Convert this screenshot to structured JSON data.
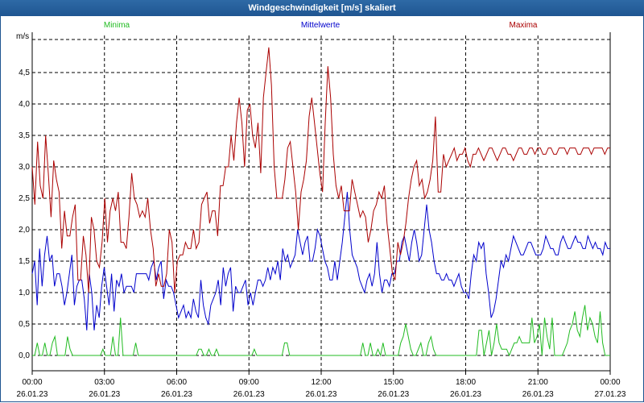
{
  "window": {
    "title": "Windgeschwindigkeit [m/s] skaliert"
  },
  "colors": {
    "minima": "#22bb22",
    "mittel": "#0000cc",
    "maxima": "#aa0000",
    "titlebar": "#1f5591"
  },
  "chart_data": {
    "type": "line",
    "ylabel": "m/s",
    "ylim": [
      -0.2,
      5.0
    ],
    "xlim_hours": [
      0,
      24
    ],
    "grid": true,
    "legend_placement": "top",
    "yticks": [
      "0,0",
      "0,5",
      "1,0",
      "1,5",
      "2,0",
      "2,5",
      "3,0",
      "3,5",
      "4,0",
      "4,5"
    ],
    "ytick_values": [
      0,
      0.5,
      1.0,
      1.5,
      2.0,
      2.5,
      3.0,
      3.5,
      4.0,
      4.5
    ],
    "xticks": [
      {
        "time": "00:00",
        "date": "26.01.23"
      },
      {
        "time": "03:00",
        "date": "26.01.23"
      },
      {
        "time": "06:00",
        "date": "26.01.23"
      },
      {
        "time": "09:00",
        "date": "26.01.23"
      },
      {
        "time": "12:00",
        "date": "26.01.23"
      },
      {
        "time": "15:00",
        "date": "26.01.23"
      },
      {
        "time": "18:00",
        "date": "26.01.23"
      },
      {
        "time": "21:00",
        "date": "26.01.23"
      },
      {
        "time": "00:00",
        "date": "27.01.23"
      }
    ],
    "series": [
      {
        "name": "Minima",
        "color": "#22bb22",
        "values": [
          0,
          0,
          0.2,
          0,
          0,
          0.2,
          0,
          0,
          0.2,
          0.3,
          0,
          0,
          0,
          0,
          0.3,
          0.1,
          0,
          0,
          0,
          0,
          0,
          0,
          0,
          0,
          0,
          0,
          0,
          0,
          0.1,
          0,
          0,
          0,
          0.3,
          0,
          0,
          0.6,
          0,
          0,
          0,
          0,
          0,
          0.2,
          0,
          0,
          0,
          0,
          0,
          0,
          0,
          0,
          0,
          0,
          0,
          0,
          0,
          0,
          0,
          0,
          0,
          0,
          0,
          0,
          0,
          0,
          0,
          0,
          0.1,
          0.1,
          0,
          0,
          0.1,
          0,
          0,
          0.1,
          0,
          0,
          0,
          0,
          0,
          0,
          0,
          0,
          0,
          0,
          0,
          0,
          0,
          0,
          0.1,
          0,
          0,
          0,
          0,
          0,
          0,
          0,
          0,
          0,
          0,
          0,
          0.2,
          0.2,
          0,
          0,
          0,
          0,
          0,
          0,
          0,
          0,
          0,
          0,
          0,
          0,
          0,
          0,
          0,
          0,
          0,
          0,
          0,
          0,
          0,
          0,
          0,
          0,
          0,
          0,
          0,
          0,
          0,
          0.2,
          0,
          0,
          0.2,
          0,
          0,
          0.1,
          0,
          0.2,
          0,
          0,
          0,
          0,
          0,
          0,
          0.2,
          0.3,
          0.5,
          0.3,
          0.1,
          0,
          0,
          0.1,
          0.2,
          0,
          0,
          0.2,
          0.3,
          0.1,
          0,
          0,
          0,
          0,
          0,
          0,
          0,
          0,
          0,
          0,
          0,
          0,
          0,
          0,
          0,
          0,
          0,
          0.4,
          0.4,
          0,
          0.2,
          0.4,
          0,
          0.2,
          0.5,
          0.2,
          0.1,
          0.1,
          0.1,
          0,
          0.1,
          0.2,
          0.2,
          0.3,
          0.2,
          0.2,
          0.2,
          0.2,
          0.6,
          0.2,
          0.3,
          0.5,
          0,
          0.6,
          0.3,
          0.1,
          0.6,
          0,
          0,
          0,
          0,
          0.1,
          0.2,
          0.4,
          0.5,
          0.7,
          0.4,
          0.3,
          0.6,
          0.8,
          0.4,
          0.6,
          0.5,
          0.3,
          0.2,
          0.7,
          0.2,
          0,
          0,
          0
        ]
      },
      {
        "name": "Mittelwerte",
        "color": "#0000cc",
        "values": [
          1.3,
          1.5,
          0.8,
          1.7,
          1.1,
          1.6,
          1.9,
          1.5,
          1.6,
          1.1,
          1.3,
          1.3,
          1.1,
          0.8,
          1.0,
          1.3,
          1.6,
          0.8,
          1.1,
          1.2,
          1.2,
          0.9,
          0.4,
          1.3,
          1.0,
          0.4,
          0.8,
          0.6,
          1.1,
          1.4,
          1.1,
          0.8,
          1.3,
          0.7,
          1.2,
          1.1,
          1.3,
          1.0,
          1.1,
          1.1,
          1.1,
          1.0,
          1.3,
          1.3,
          1.3,
          1.3,
          1.3,
          1.2,
          1.4,
          1.5,
          1.2,
          1.4,
          1.5,
          0.9,
          1.2,
          1.1,
          1.1,
          1.0,
          0.8,
          0.6,
          0.7,
          0.8,
          0.6,
          0.7,
          0.6,
          0.9,
          0.7,
          0.6,
          1.2,
          0.8,
          0.6,
          0.5,
          0.8,
          0.9,
          1.0,
          1.2,
          0.8,
          1.4,
          1.1,
          1.3,
          1.4,
          0.7,
          1.1,
          1.0,
          1.0,
          1.1,
          1.2,
          0.8,
          1.0,
          0.8,
          1.0,
          1.2,
          1.2,
          1.1,
          1.2,
          1.4,
          1.2,
          1.4,
          1.3,
          1.5,
          1.2,
          1.7,
          1.5,
          1.6,
          1.4,
          1.5,
          1.6,
          2.0,
          1.8,
          1.6,
          1.8,
          1.9,
          1.5,
          1.5,
          1.7,
          2.0,
          1.9,
          1.7,
          1.5,
          1.4,
          1.2,
          1.2,
          1.5,
          1.2,
          1.5,
          1.8,
          2.2,
          2.6,
          2.0,
          1.6,
          1.5,
          1.4,
          1.2,
          1.1,
          1.0,
          1.2,
          1.3,
          1.1,
          1.3,
          1.8,
          1.3,
          1.0,
          1.2,
          1.2,
          1.1,
          1.3,
          1.3,
          1.5,
          1.5,
          1.8,
          1.9,
          1.7,
          1.5,
          1.8,
          2.0,
          1.8,
          1.5,
          1.6,
          2.0,
          2.4,
          2.0,
          1.8,
          1.5,
          1.3,
          1.3,
          1.2,
          1.2,
          1.3,
          1.2,
          1.2,
          1.1,
          1.2,
          1.3,
          1.1,
          1.0,
          1.0,
          0.9,
          1.3,
          1.6,
          1.5,
          1.8,
          1.7,
          1.8,
          1.3,
          1.0,
          0.6,
          0.7,
          0.9,
          1.2,
          1.5,
          1.4,
          1.6,
          1.5,
          1.7,
          1.9,
          1.8,
          1.7,
          1.6,
          1.6,
          1.7,
          1.8,
          1.8,
          1.7,
          1.6,
          1.6,
          1.6,
          1.7,
          1.9,
          1.8,
          1.7,
          1.7,
          1.6,
          1.6,
          1.8,
          1.9,
          1.8,
          1.7,
          1.7,
          1.8,
          1.9,
          1.8,
          1.8,
          1.7,
          1.7,
          1.9,
          1.8,
          1.7,
          1.8,
          1.7,
          1.7,
          1.6,
          1.8,
          1.7,
          1.7
        ]
      },
      {
        "name": "Maxima",
        "color": "#aa0000",
        "values": [
          3.0,
          2.4,
          3.4,
          2.7,
          2.5,
          3.5,
          2.9,
          2.2,
          3.1,
          2.8,
          2.6,
          1.7,
          2.3,
          1.9,
          1.9,
          2.2,
          2.4,
          1.2,
          1.2,
          1.9,
          1.6,
          1.0,
          2.2,
          2.0,
          1.5,
          1.4,
          1.8,
          2.5,
          1.8,
          2.3,
          2.5,
          2.3,
          2.6,
          1.8,
          1.8,
          1.7,
          2.2,
          2.9,
          2.5,
          2.4,
          2.2,
          2.3,
          2.2,
          2.5,
          2.0,
          1.7,
          1.1,
          1.3,
          1.1,
          1.1,
          1.3,
          2.0,
          1.8,
          1.0,
          1.5,
          1.6,
          1.6,
          1.8,
          1.7,
          1.7,
          2.0,
          1.7,
          1.8,
          2.4,
          2.5,
          2.6,
          2.1,
          2.3,
          2.3,
          1.9,
          2.7,
          2.7,
          3.0,
          3.0,
          3.5,
          3.1,
          3.7,
          4.1,
          3.7,
          3.0,
          3.9,
          4.0,
          3.5,
          3.3,
          3.7,
          2.9,
          4.1,
          4.5,
          4.9,
          4.3,
          3.0,
          2.5,
          2.5,
          2.5,
          2.8,
          3.3,
          3.4,
          3.0,
          2.6,
          2.0,
          2.6,
          2.8,
          3.1,
          3.8,
          4.1,
          3.7,
          3.3,
          2.9,
          2.6,
          3.7,
          4.6,
          4.1,
          3.2,
          2.7,
          2.5,
          2.7,
          2.3,
          2.3,
          2.3,
          2.8,
          2.6,
          2.4,
          2.2,
          2.3,
          2.2,
          1.8,
          2.0,
          2.3,
          2.4,
          2.6,
          2.5,
          2.7,
          2.1,
          1.7,
          1.3,
          1.2,
          1.8,
          1.6,
          1.8,
          2.1,
          2.5,
          2.8,
          3.0,
          3.1,
          2.7,
          2.8,
          2.5,
          2.6,
          2.8,
          3.1,
          3.8,
          2.6,
          2.6,
          3.2,
          3.0,
          3.1,
          3.2,
          3.3,
          3.1,
          3.2,
          3.2,
          3.3,
          3.1,
          3.0,
          3.2,
          3.2,
          3.3,
          3.2,
          3.1,
          3.2,
          3.3,
          3.3,
          3.2,
          3.1,
          3.2,
          3.3,
          3.3,
          3.2,
          3.2,
          3.1,
          3.2,
          3.3,
          3.3,
          3.2,
          3.2,
          3.3,
          3.3,
          3.2,
          3.3,
          3.3,
          3.2,
          3.2,
          3.3,
          3.3,
          3.2,
          3.2,
          3.3,
          3.3,
          3.3,
          3.2,
          3.3,
          3.3,
          3.3,
          3.2,
          3.2,
          3.3,
          3.3,
          3.3,
          3.2,
          3.3,
          3.3,
          3.3,
          3.3,
          3.2,
          3.3,
          3.3
        ]
      }
    ]
  }
}
